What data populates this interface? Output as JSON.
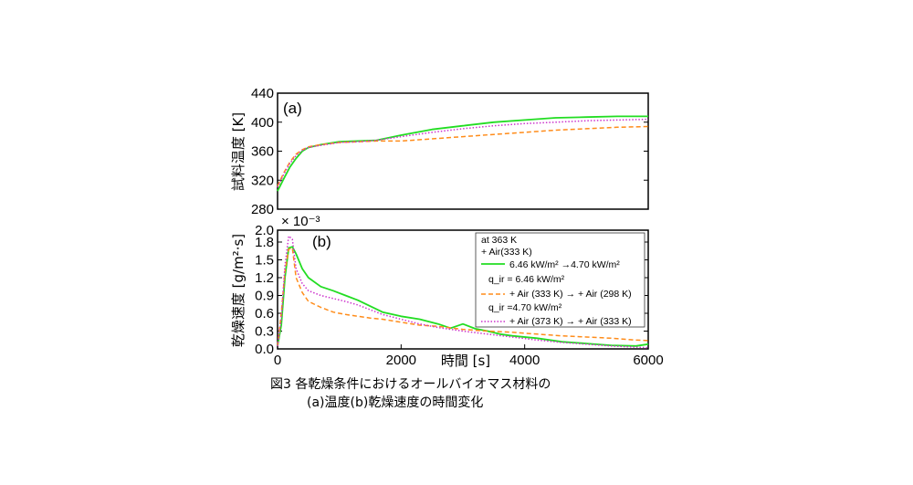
{
  "chart_data": [
    {
      "type": "line",
      "panel_label": "(a)",
      "ylabel": "試料温度 [K]",
      "xlim": [
        0,
        6000
      ],
      "ylim": [
        280,
        440
      ],
      "yticks": [
        280,
        320,
        360,
        400,
        440
      ],
      "series": [
        {
          "color": "#22dd22",
          "style": "solid",
          "x": [
            0,
            100,
            200,
            300,
            400,
            500,
            700,
            1000,
            1300,
            1600,
            2000,
            2500,
            3000,
            3500,
            4000,
            4500,
            5000,
            5500,
            6000
          ],
          "y": [
            305,
            322,
            338,
            350,
            360,
            365,
            369,
            373,
            374,
            375,
            382,
            390,
            395,
            400,
            403,
            406,
            407,
            408,
            408
          ]
        },
        {
          "color": "#ff8c1a",
          "style": "dashed",
          "x": [
            0,
            100,
            200,
            300,
            400,
            500,
            700,
            1000,
            1300,
            1600,
            2000,
            2500,
            3000,
            3500,
            4000,
            4500,
            5000,
            5500,
            6000
          ],
          "y": [
            312,
            330,
            345,
            356,
            362,
            366,
            369,
            372,
            373,
            374,
            374,
            377,
            380,
            383,
            386,
            389,
            391,
            393,
            394
          ]
        },
        {
          "color": "#cc33cc",
          "style": "dotted",
          "x": [
            0,
            100,
            200,
            300,
            400,
            500,
            700,
            1000,
            1300,
            1600,
            2000,
            2500,
            3000,
            3500,
            4000,
            4500,
            5000,
            5500,
            6000
          ],
          "y": [
            310,
            328,
            343,
            354,
            361,
            365,
            368,
            372,
            373,
            375,
            380,
            386,
            391,
            395,
            398,
            400,
            402,
            403,
            404
          ]
        }
      ]
    },
    {
      "type": "line",
      "panel_label": "(b)",
      "ylabel": "乾燥速度 [g/m²·s]",
      "xlabel": "時間 [s]",
      "scale_note": "× 10⁻³",
      "xlim": [
        0,
        6000
      ],
      "ylim": [
        0,
        2.0
      ],
      "xticks": [
        0,
        2000,
        4000,
        6000
      ],
      "yticks": [
        0.0,
        0.3,
        0.6,
        0.9,
        1.2,
        1.5,
        1.8,
        2.0
      ],
      "ytick_labels": [
        "0.0",
        "0.3",
        "0.6",
        "0.9",
        "1.2",
        "1.5",
        "1.8",
        "2.0"
      ],
      "series": [
        {
          "color": "#22dd22",
          "style": "solid",
          "x": [
            0,
            60,
            120,
            180,
            240,
            300,
            400,
            500,
            700,
            900,
            1100,
            1300,
            1500,
            1700,
            2000,
            2300,
            2600,
            2800,
            3000,
            3200,
            3400,
            3600,
            3800,
            4200,
            4600,
            5000,
            5400,
            5800,
            6000
          ],
          "y": [
            0.05,
            0.4,
            1.2,
            1.7,
            1.72,
            1.6,
            1.35,
            1.2,
            1.05,
            0.98,
            0.9,
            0.82,
            0.72,
            0.62,
            0.55,
            0.5,
            0.42,
            0.35,
            0.42,
            0.34,
            0.3,
            0.25,
            0.22,
            0.18,
            0.12,
            0.09,
            0.06,
            0.05,
            0.08
          ]
        },
        {
          "color": "#ff8c1a",
          "style": "dashed",
          "x": [
            0,
            60,
            120,
            180,
            240,
            300,
            400,
            500,
            700,
            900,
            1100,
            1300,
            1500,
            1700,
            2000,
            2300,
            2600,
            3000,
            3400,
            3800,
            4200,
            4600,
            5000,
            5400,
            5800,
            6000
          ],
          "y": [
            0.05,
            0.6,
            1.3,
            1.68,
            1.7,
            1.2,
            0.95,
            0.8,
            0.7,
            0.62,
            0.58,
            0.55,
            0.52,
            0.5,
            0.45,
            0.4,
            0.38,
            0.33,
            0.3,
            0.28,
            0.25,
            0.22,
            0.2,
            0.18,
            0.15,
            0.14
          ]
        },
        {
          "color": "#cc33cc",
          "style": "dotted",
          "x": [
            0,
            60,
            120,
            180,
            240,
            300,
            400,
            500,
            700,
            900,
            1100,
            1300,
            1500,
            1700,
            2000,
            2300,
            2600,
            3000,
            3400,
            3800,
            4200,
            4600,
            5000,
            5400,
            5800,
            6000
          ],
          "y": [
            0.05,
            0.5,
            1.4,
            1.9,
            1.85,
            1.35,
            1.1,
            0.98,
            0.9,
            0.85,
            0.8,
            0.74,
            0.66,
            0.58,
            0.5,
            0.42,
            0.36,
            0.3,
            0.25,
            0.2,
            0.15,
            0.11,
            0.08,
            0.05,
            0.03,
            0.02
          ]
        }
      ],
      "legend": {
        "placement": "top-right",
        "header1": "at 363 K",
        "header2": "+ Air(333 K)",
        "entry1": "6.46 kW/m² →4.70 kW/m²",
        "header3": "q_ir = 6.46 kW/m²",
        "entry2": "+ Air (333 K) → + Air (298 K)",
        "header4": "q_ir =4.70 kW/m²",
        "entry3": "+ Air (373 K) → + Air (333 K)"
      }
    }
  ],
  "caption": {
    "line1": "図3  各乾燥条件におけるオールバイオマス材料の",
    "line2": "(a)温度(b)乾燥速度の時間変化"
  }
}
